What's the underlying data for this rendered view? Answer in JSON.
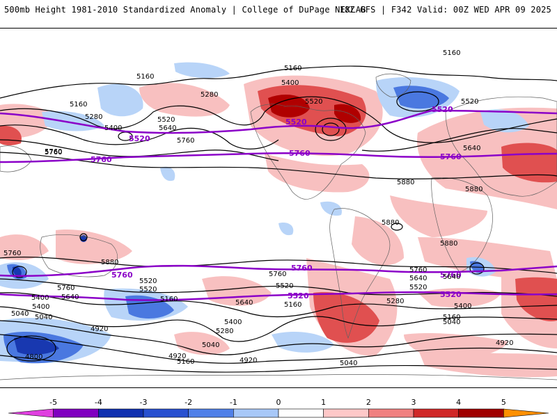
{
  "header": {
    "title_left": "500mb Height 1981-2010 Standardized Anomaly | College of DuPage NEXLAB",
    "title_right": "18Z GFS | F342 Valid: 00Z WED APR 09 2025"
  },
  "colorbar": {
    "labels": [
      "-5",
      "-4",
      "-3",
      "-2",
      "-1",
      "0",
      "1",
      "2",
      "3",
      "4",
      "5"
    ],
    "colors": [
      "#e040e0",
      "#8000c0",
      "#1030b0",
      "#2850d0",
      "#5080e8",
      "#a8c8f8",
      "#ffffff",
      "#ffc8c8",
      "#f08080",
      "#d02828",
      "#a00000",
      "#ff9000"
    ]
  },
  "map": {
    "colors": {
      "strong_positive": "#b00000",
      "positive": "#e05050",
      "weak_positive": "#f8c0c0",
      "weak_negative": "#b8d4f8",
      "negative": "#4a78e0",
      "strong_negative": "#1838b0",
      "reference_contour": "#8b00c8",
      "height_contour": "#000000",
      "coastline": "#606060"
    },
    "reference_labels": [
      "5520",
      "5760",
      "5520",
      "5760",
      "5760",
      "5520",
      "5760",
      "5760",
      "5760",
      "5520",
      "5520"
    ],
    "contour_labels": [
      "5160",
      "5160",
      "5160",
      "5280",
      "5400",
      "5520",
      "5160",
      "5280",
      "5400",
      "5520",
      "5640",
      "5640",
      "5760",
      "5760",
      "5880",
      "5880",
      "5880",
      "5880",
      "5880",
      "5760",
      "5760",
      "5640",
      "5520",
      "5400",
      "5160",
      "5040",
      "4920",
      "4800",
      "5160",
      "5280",
      "5400",
      "5520",
      "5640",
      "5760",
      "5520",
      "5400",
      "5160",
      "5040",
      "4920",
      "5280",
      "5520",
      "5640",
      "5760",
      "5400",
      "5160",
      "5040",
      "4920",
      "5040",
      "4920",
      "5040",
      "5760",
      "5640",
      "5520"
    ]
  }
}
